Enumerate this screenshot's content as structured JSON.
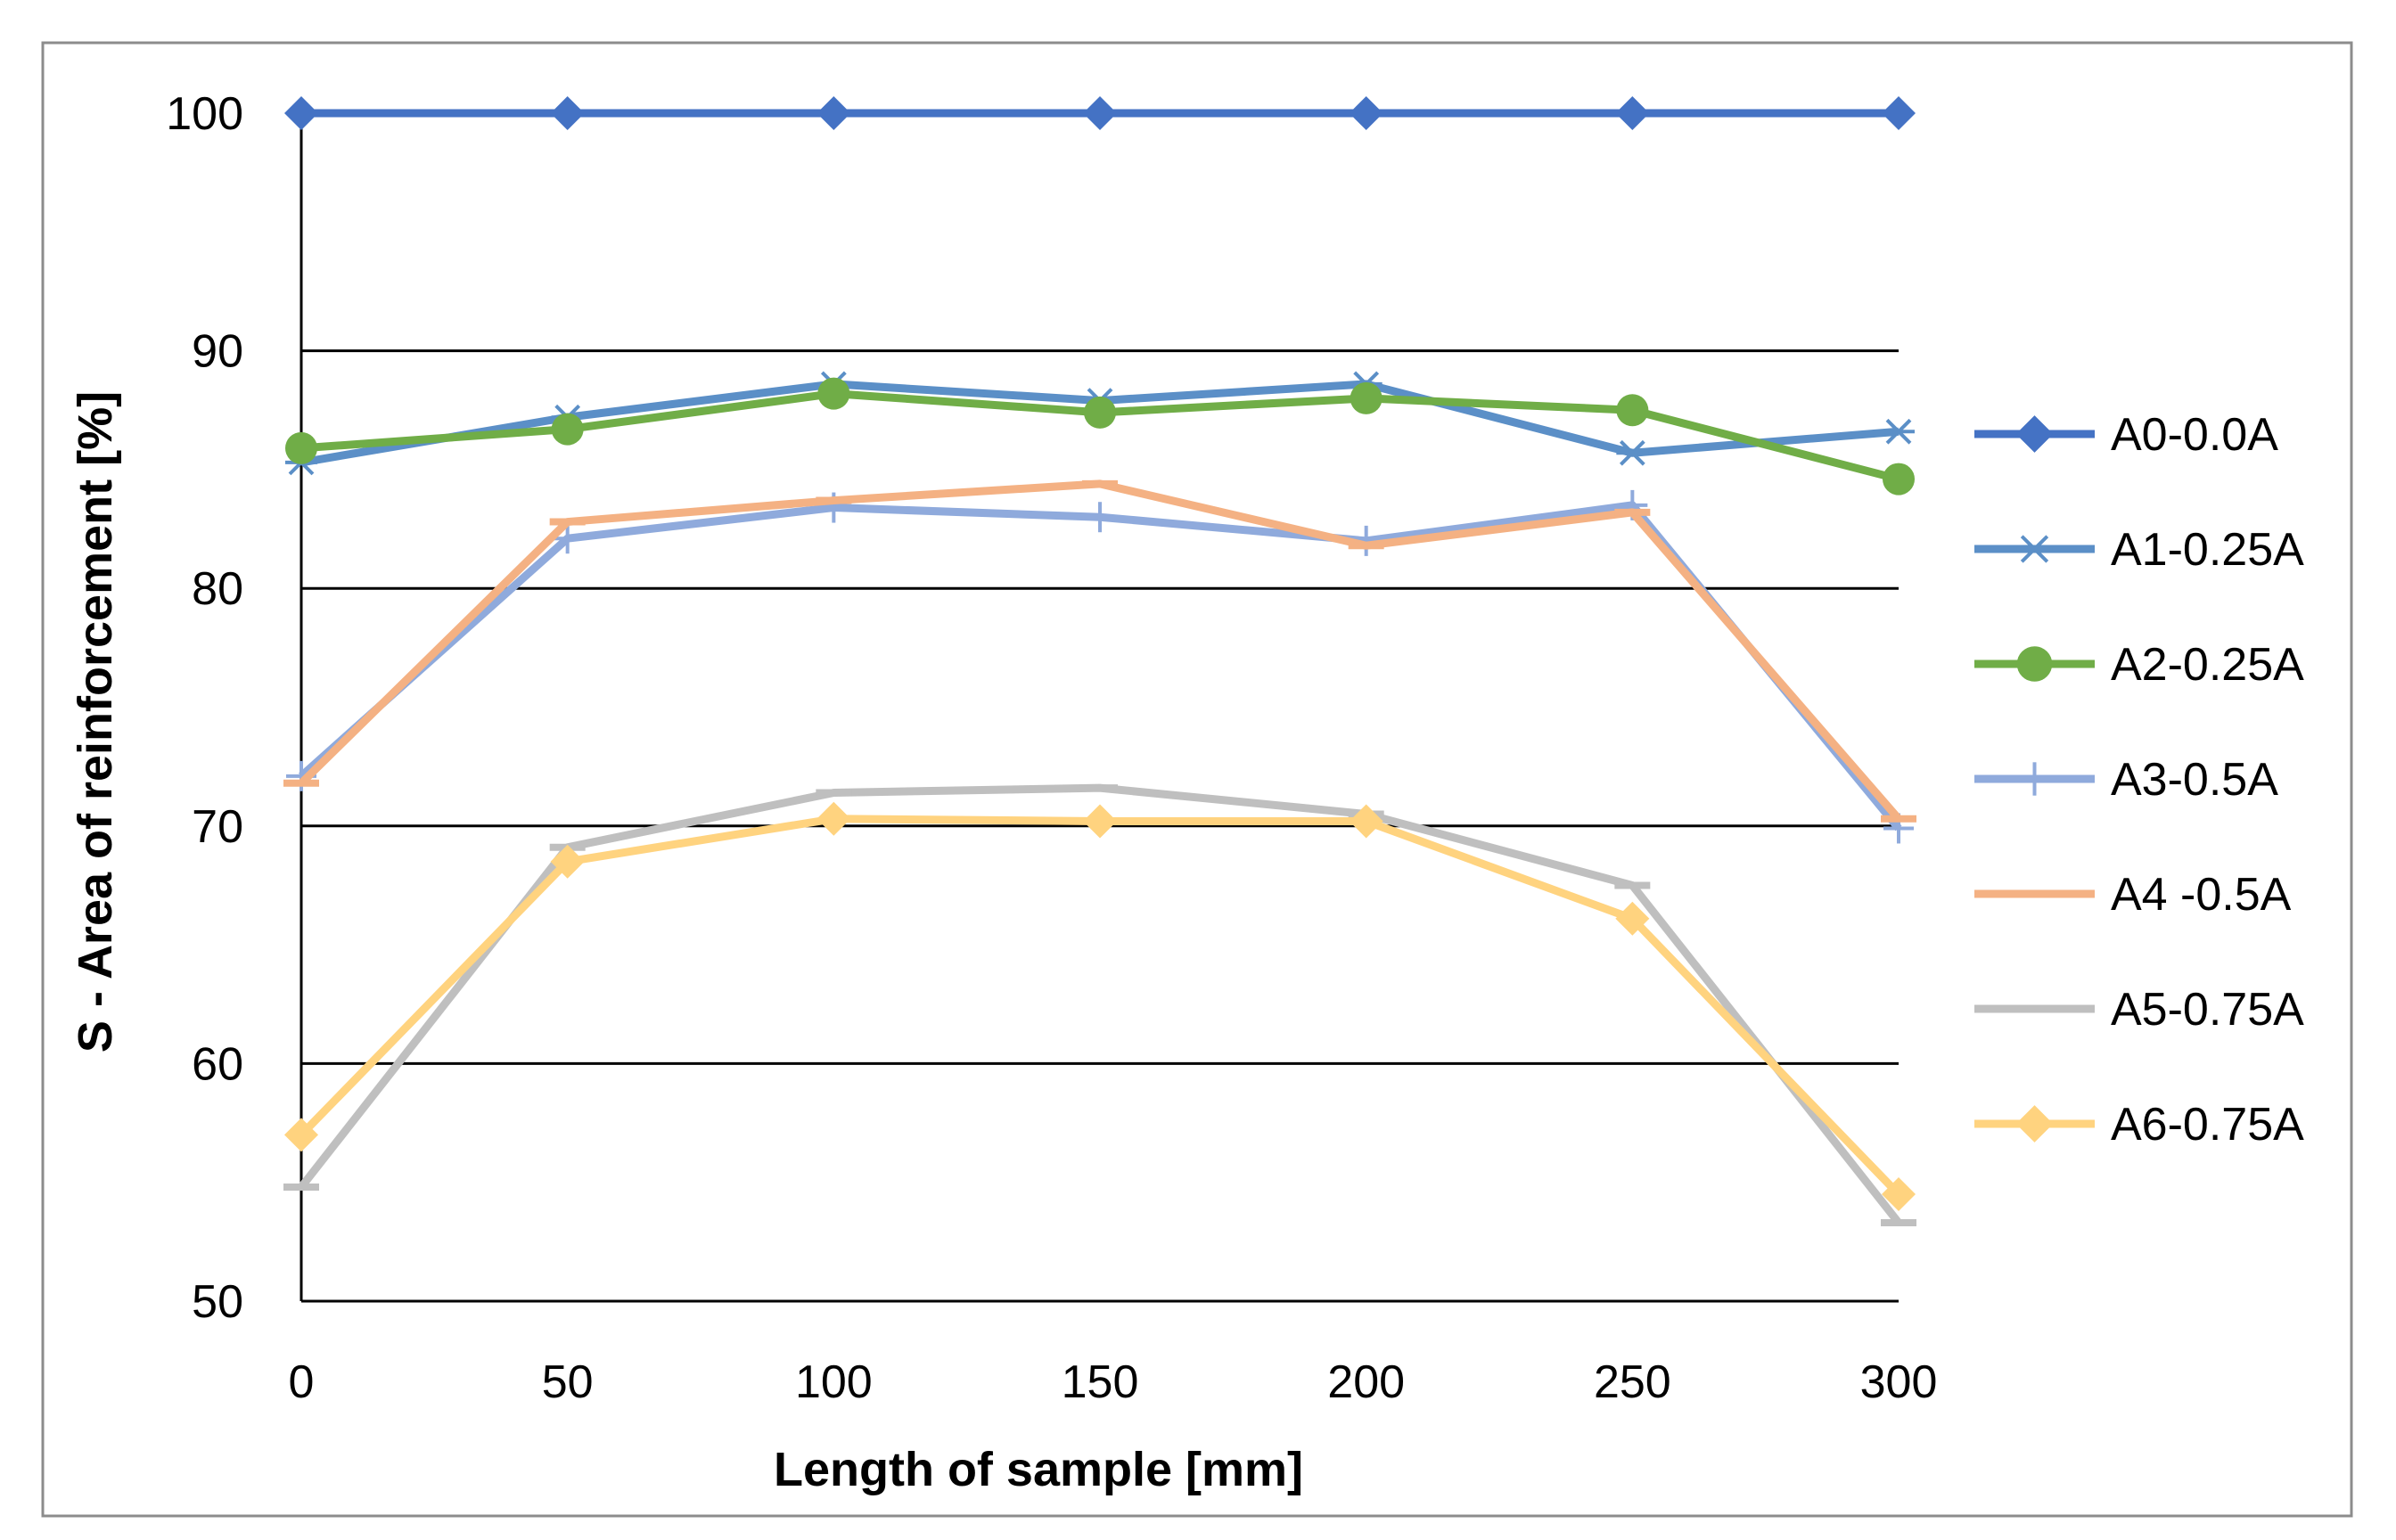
{
  "chart_data": {
    "type": "line",
    "title": "",
    "xlabel": "Length of sample [mm]",
    "ylabel": "S - Area of reinforcement [%]",
    "x": [
      0,
      50,
      100,
      150,
      200,
      250,
      300
    ],
    "xlim": [
      0,
      300
    ],
    "ylim": [
      50,
      100
    ],
    "xticks": [
      0,
      50,
      100,
      150,
      200,
      250,
      300
    ],
    "yticks": [
      50,
      60,
      70,
      80,
      90,
      100
    ],
    "grid": "horizontal",
    "legend_position": "right",
    "series": [
      {
        "name": "A0-0.0A",
        "color": "#4472C4",
        "marker": "diamond",
        "values": [
          100,
          100,
          100,
          100,
          100,
          100,
          100
        ]
      },
      {
        "name": "A1-0.25A",
        "color": "#5B8FC7",
        "marker": "asterisk",
        "values": [
          85.3,
          87.2,
          88.6,
          87.9,
          88.6,
          85.7,
          86.6
        ]
      },
      {
        "name": "A2-0.25A",
        "color": "#70AD47",
        "marker": "circle",
        "values": [
          85.9,
          86.7,
          88.2,
          87.4,
          88.0,
          87.5,
          84.6
        ]
      },
      {
        "name": "A3-0.5A",
        "color": "#8FAADC",
        "marker": "plus",
        "values": [
          72.1,
          82.1,
          83.4,
          83.0,
          82.0,
          83.5,
          69.9
        ]
      },
      {
        "name": "A4 -0.5A",
        "color": "#F4B183",
        "marker": "dash",
        "values": [
          71.8,
          82.8,
          83.7,
          84.4,
          81.8,
          83.2,
          70.3
        ]
      },
      {
        "name": "A5-0.75A",
        "color": "#BFBFBF",
        "marker": "dash",
        "values": [
          54.8,
          69.1,
          71.4,
          71.6,
          70.5,
          67.5,
          53.3
        ]
      },
      {
        "name": "A6-0.75A",
        "color": "#FFD37F",
        "marker": "diamond",
        "values": [
          57.0,
          68.5,
          70.3,
          70.2,
          70.2,
          66.1,
          54.5
        ]
      }
    ]
  }
}
